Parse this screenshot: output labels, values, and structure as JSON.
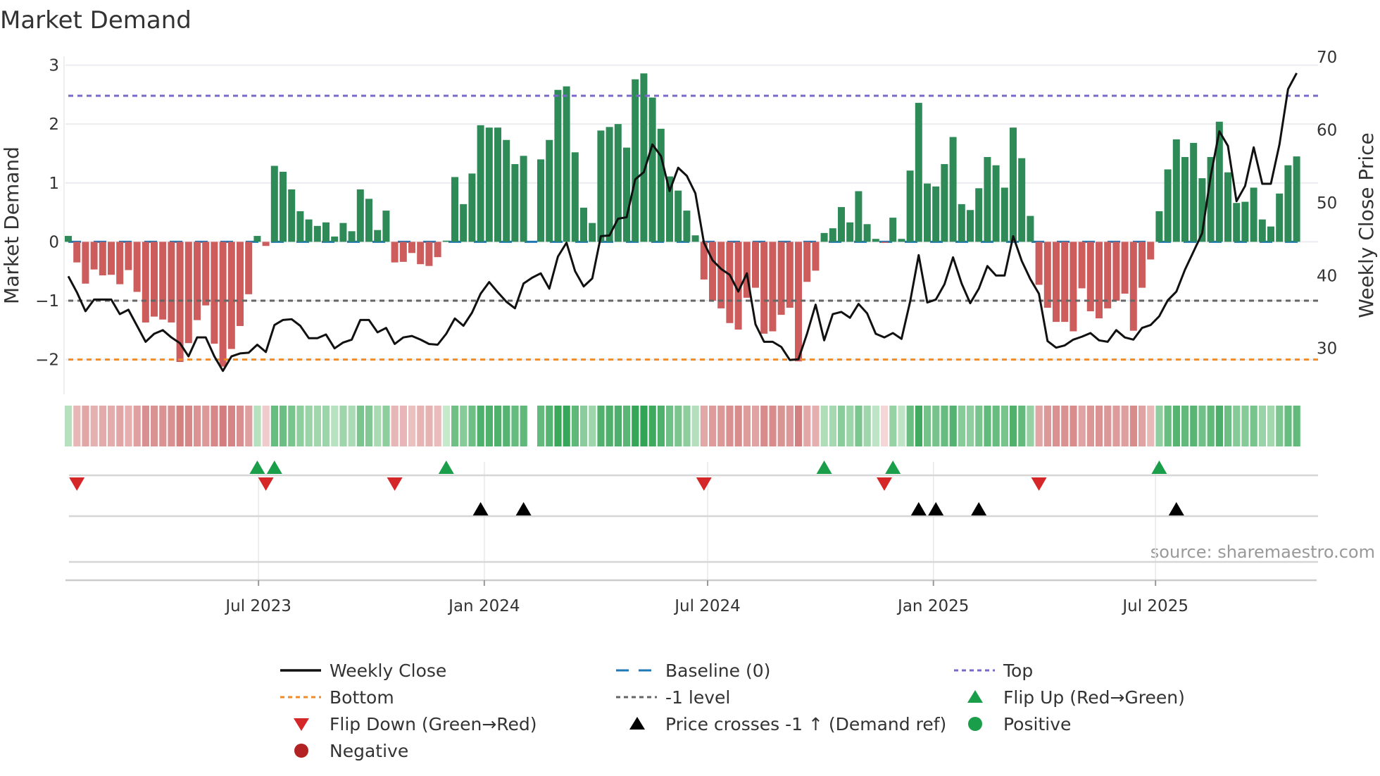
{
  "chart_data": {
    "type": "bar",
    "title": "Market Demand",
    "ylabel": "Market Demand",
    "y2label": "Weekly Close Price",
    "ylim": [
      -2.65,
      3.15
    ],
    "y2lim": [
      23.4,
      70.3
    ],
    "yticks": [
      3,
      2,
      1,
      0,
      -1,
      -2
    ],
    "ytick_labels": [
      "3",
      "2",
      "1",
      "0",
      "−1",
      "−2"
    ],
    "y2ticks": [
      70,
      60,
      50,
      40,
      30
    ],
    "y2tick_labels": [
      "70",
      "60",
      "50",
      "40",
      "30"
    ],
    "frequency": "weekly",
    "start_date": "2023-01-27",
    "xticks": [
      {
        "date": "2023-07-01",
        "label": "Jul 2023"
      },
      {
        "date": "2024-01-01",
        "label": "Jan 2024"
      },
      {
        "date": "2024-07-01",
        "label": "Jul 2024"
      },
      {
        "date": "2025-01-01",
        "label": "Jan 2025"
      },
      {
        "date": "2025-07-01",
        "label": "Jul 2025"
      }
    ],
    "levels": {
      "top": 2.48,
      "baseline": 0,
      "minus_one": -1,
      "bottom": -2.0
    },
    "demand": [
      0.1,
      -0.35,
      -0.71,
      -0.47,
      -0.57,
      -0.56,
      -0.72,
      -0.48,
      -0.85,
      -1.37,
      -1.27,
      -1.32,
      -1.37,
      -2.04,
      -1.72,
      -1.33,
      -1.08,
      -1.73,
      -2.12,
      -1.82,
      -1.43,
      -0.89,
      0.1,
      -0.07,
      1.29,
      1.19,
      0.89,
      0.52,
      0.38,
      0.27,
      0.33,
      0.09,
      0.32,
      0.18,
      0.89,
      0.73,
      0.2,
      0.53,
      -0.35,
      -0.34,
      -0.19,
      -0.38,
      -0.41,
      -0.26,
      0.02,
      1.1,
      0.64,
      1.16,
      1.98,
      1.94,
      1.94,
      1.73,
      1.32,
      1.46,
      0.0,
      1.4,
      1.73,
      2.58,
      2.64,
      1.52,
      0.58,
      0.32,
      1.89,
      1.95,
      2.0,
      1.6,
      2.76,
      2.86,
      2.45,
      1.92,
      1.11,
      0.87,
      0.53,
      0.11,
      -0.64,
      -1.0,
      -1.13,
      -1.38,
      -1.49,
      -0.95,
      -0.78,
      -1.56,
      -1.52,
      -1.24,
      -1.12,
      -2.03,
      -0.68,
      -0.49,
      0.15,
      0.23,
      0.59,
      0.33,
      0.86,
      0.3,
      0.05,
      -0.01,
      0.41,
      0.05,
      1.21,
      2.36,
      0.99,
      0.94,
      1.32,
      1.78,
      0.64,
      0.54,
      0.91,
      1.44,
      1.3,
      0.92,
      1.94,
      1.42,
      0.44,
      -0.73,
      -1.12,
      -1.36,
      -1.36,
      -1.52,
      -0.79,
      -1.18,
      -1.3,
      -1.13,
      -1.0,
      -0.88,
      -1.51,
      -0.78,
      -0.3,
      0.52,
      1.23,
      1.74,
      1.44,
      1.68,
      1.08,
      1.44,
      2.04,
      1.18,
      0.66,
      0.68,
      0.92,
      0.38,
      0.26,
      0.82,
      1.3,
      1.45
    ],
    "weekly_close": [
      40.1,
      37.9,
      35.3,
      36.9,
      36.9,
      36.9,
      34.9,
      35.5,
      33.3,
      31.1,
      32.2,
      32.7,
      31.7,
      30.9,
      29.1,
      31.7,
      31.7,
      29.1,
      27.1,
      29.1,
      29.5,
      29.6,
      30.7,
      29.7,
      33.4,
      34.1,
      34.2,
      33.3,
      31.6,
      31.6,
      32.1,
      30.2,
      31.0,
      31.4,
      34.1,
      34.1,
      32.4,
      33.0,
      30.8,
      31.7,
      31.9,
      31.4,
      30.8,
      30.7,
      32.2,
      34.3,
      33.3,
      35.1,
      37.7,
      39.3,
      37.9,
      36.6,
      35.7,
      39.1,
      39.9,
      40.5,
      38.4,
      42.8,
      44.7,
      40.8,
      38.7,
      39.8,
      45.6,
      45.7,
      48.0,
      48.2,
      53.4,
      54.4,
      58.2,
      56.6,
      51.8,
      55.0,
      53.9,
      51.5,
      44.7,
      42.3,
      41.1,
      40.3,
      38.0,
      40.5,
      33.5,
      31.1,
      31.1,
      30.4,
      28.6,
      28.7,
      32.2,
      36.2,
      31.3,
      34.9,
      35.2,
      34.4,
      36.3,
      35.0,
      32.2,
      31.7,
      32.3,
      31.5,
      36.6,
      43.0,
      36.5,
      36.9,
      39.0,
      42.7,
      39.1,
      36.4,
      38.4,
      41.5,
      40.2,
      40.2,
      45.6,
      42.2,
      39.7,
      37.7,
      31.2,
      30.3,
      30.6,
      31.4,
      31.8,
      32.3,
      31.3,
      31.1,
      32.7,
      31.7,
      31.4,
      33.0,
      33.4,
      34.6,
      36.8,
      38.0,
      41.0,
      43.5,
      46.0,
      53.9,
      60.0,
      58.0,
      50.4,
      52.5,
      57.8,
      52.8,
      52.8,
      58.2,
      65.8,
      68.0
    ],
    "flip_up_weeks": [
      22,
      24,
      44,
      88,
      96,
      127
    ],
    "flip_down_weeks": [
      1,
      23,
      38,
      74,
      95,
      113
    ],
    "price_cross_weeks": [
      48,
      53,
      99,
      101,
      106,
      129
    ],
    "legend_placement": "bottom",
    "legend": [
      {
        "label": "Weekly Close",
        "kind": "line"
      },
      {
        "label": "Baseline (0)",
        "kind": "baseline"
      },
      {
        "label": "Top",
        "kind": "top"
      },
      {
        "label": "Bottom",
        "kind": "bottom"
      },
      {
        "label": "-1 level",
        "kind": "minus1"
      },
      {
        "label": "Flip Up (Red→Green)",
        "kind": "flipup"
      },
      {
        "label": "Flip Down (Green→Red)",
        "kind": "flipdown"
      },
      {
        "label": "Price crosses -1 ↑ (Demand ref)",
        "kind": "cross"
      },
      {
        "label": "Positive",
        "kind": "pos"
      },
      {
        "label": "Negative",
        "kind": "neg"
      }
    ],
    "source": "source: sharemaestro.com"
  },
  "colors": {
    "positive": "#2e8b57",
    "negative": "#cd5c5c",
    "price": "#111111",
    "top": "#7b68c8",
    "bottom": "#f08c28",
    "minus_one": "#666666",
    "baseline": "#1f77b4",
    "flip_up": "#1a9e4a",
    "flip_down": "#d62728",
    "cross": "#000000",
    "pos_dot": "#1a9e4a",
    "neg_dot": "#b22222"
  }
}
